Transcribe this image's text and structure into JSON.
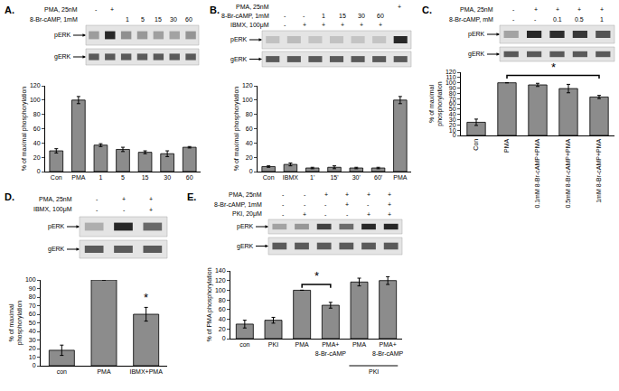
{
  "chart_data": [
    {
      "type": "bar",
      "title": "A.",
      "ylabel": "% of maximal phosphorylation",
      "categories": [
        "Con",
        "PMA",
        "1",
        "5",
        "15",
        "30",
        "60"
      ],
      "values": [
        29,
        100,
        37,
        31,
        27,
        25,
        34
      ],
      "errors": [
        3,
        5,
        2,
        3,
        2,
        4,
        1
      ],
      "color": "#8c8c8c",
      "ylim": [
        0,
        120
      ],
      "yticks": [
        0,
        20,
        40,
        60,
        80,
        100,
        120
      ],
      "blots": [
        "pERK",
        "gERK"
      ],
      "treatments": [
        {
          "label": "PMA, 25nM",
          "marks": [
            "-",
            "+",
            null,
            null,
            null,
            null,
            null
          ]
        },
        {
          "label": "8-Br-cAMP, 1mM",
          "marks": [
            null,
            null,
            "1",
            "5",
            "15",
            "30",
            "60"
          ]
        }
      ]
    },
    {
      "type": "bar",
      "title": "B.",
      "ylabel": "% of maximal phosphorylation",
      "categories": [
        "Con",
        "IBMX",
        "1'",
        "15'",
        "30'",
        "60'",
        "PMA"
      ],
      "values": [
        7,
        10,
        5,
        6,
        5,
        5,
        100
      ],
      "errors": [
        1,
        2,
        1,
        2,
        1,
        1,
        5
      ],
      "color": "#8c8c8c",
      "ylim": [
        0,
        120
      ],
      "yticks": [
        0,
        20,
        40,
        60,
        80,
        100,
        120
      ],
      "blots": [
        "pERK",
        "gERK"
      ],
      "treatments": [
        {
          "label": "PMA, 25nM",
          "marks": [
            null,
            null,
            null,
            null,
            null,
            null,
            "+"
          ]
        },
        {
          "label": "8-Br-cAMP, 1mM",
          "marks": [
            "-",
            "-",
            "1",
            "15",
            "30",
            "60",
            null
          ]
        },
        {
          "label": "IBMX, 100μM",
          "marks": [
            "-",
            "+",
            "+",
            "+",
            "+",
            "+",
            null
          ]
        }
      ]
    },
    {
      "type": "bar",
      "title": "C.",
      "ylabel": "% of maximal\nphosphorylation",
      "categories": [
        "Con",
        "PMA",
        "0.1mM 8-Br-cAMP+PMA",
        "0.5mM 8-Br-cAMP+PMA",
        "1mM 8-Br-cAMP+PMA"
      ],
      "values": [
        25,
        100,
        96,
        89,
        73
      ],
      "errors": [
        6,
        0,
        3,
        8,
        3
      ],
      "color": "#8c8c8c",
      "ylim": [
        0,
        120
      ],
      "yticks": [
        0,
        10,
        20,
        30,
        40,
        50,
        60,
        70,
        80,
        90,
        100,
        110,
        120
      ],
      "blots": [
        "pERK",
        "gERK"
      ],
      "treatments": [
        {
          "label": "PMA, 25nM",
          "marks": [
            "-",
            "+",
            "+",
            "+",
            "+"
          ]
        },
        {
          "label": "8-Br-cAMP, mM",
          "marks": [
            "-",
            "-",
            "0.1",
            "0.5",
            "1"
          ]
        }
      ],
      "significance": [
        {
          "from": 1,
          "to": 4,
          "label": "*"
        }
      ]
    },
    {
      "type": "bar",
      "title": "D.",
      "ylabel": "% of maximal\nphosphorylation",
      "categories": [
        "con",
        "PMA",
        "IBMX+PMA"
      ],
      "values": [
        18,
        100,
        60
      ],
      "errors": [
        6,
        0,
        8
      ],
      "color": "#8c8c8c",
      "ylim": [
        0,
        100
      ],
      "yticks": [
        0,
        10,
        20,
        30,
        40,
        50,
        60,
        70,
        80,
        90,
        100
      ],
      "blots": [
        "pERK",
        "gERK"
      ],
      "treatments": [
        {
          "label": "PMA, 25nM",
          "marks": [
            "-",
            "+",
            "+"
          ]
        },
        {
          "label": "IBMX, 100μM",
          "marks": [
            "-",
            "-",
            "+"
          ]
        }
      ],
      "significance": [
        {
          "at": 2,
          "label": "*"
        }
      ]
    },
    {
      "type": "bar",
      "title": "E.",
      "ylabel": "% of PMA phosphorylation",
      "categories": [
        "con",
        "PKI",
        "PMA",
        "PMA+\n8-Br-cAMP",
        "PMA",
        "PMA+\n8-Br-cAMP"
      ],
      "values": [
        30,
        38,
        100,
        69,
        117,
        120
      ],
      "errors": [
        8,
        6,
        0,
        6,
        8,
        8
      ],
      "color": "#8c8c8c",
      "ylim": [
        0,
        140
      ],
      "yticks": [
        0,
        20,
        40,
        60,
        80,
        100,
        120,
        140
      ],
      "blots": [
        "pERK",
        "gERK"
      ],
      "treatments": [
        {
          "label": "PMA, 25nM",
          "marks": [
            "-",
            "-",
            "+",
            "+",
            "+",
            "+"
          ]
        },
        {
          "label": "8-Br-cAMP, 1mM",
          "marks": [
            "-",
            "-",
            "-",
            "+",
            "-",
            "+"
          ]
        },
        {
          "label": "PKI, 20μM",
          "marks": [
            "-",
            "+",
            "-",
            "-",
            "+",
            "+"
          ]
        }
      ],
      "significance": [
        {
          "from": 2,
          "to": 3,
          "label": "*"
        }
      ],
      "groups": [
        {
          "label": "PKI",
          "from": 4,
          "to": 5
        }
      ]
    }
  ]
}
